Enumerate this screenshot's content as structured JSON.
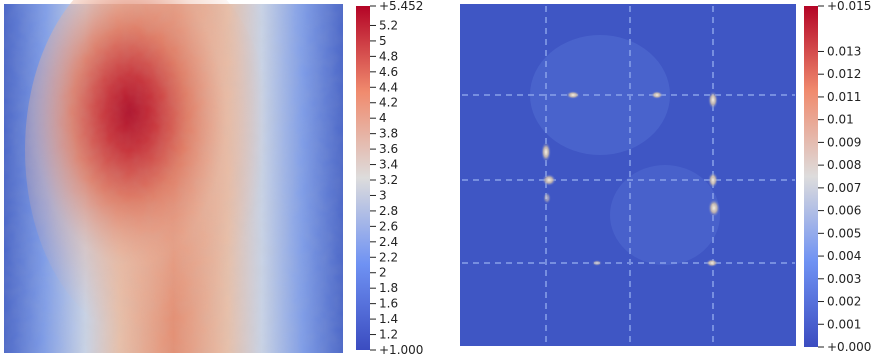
{
  "panels": [
    {
      "id": "left",
      "colorbar": {
        "colors": [
          "#3b4cc0",
          "#6f92f3",
          "#dddcdc",
          "#f08b6e",
          "#b40426"
        ],
        "min_label": "+1.000",
        "max_label": "+5.452",
        "min": 1.0,
        "max": 5.452,
        "ticks": [
          {
            "value": 5.2,
            "label": "5.2"
          },
          {
            "value": 5.0,
            "label": "5"
          },
          {
            "value": 4.8,
            "label": "4.8"
          },
          {
            "value": 4.6,
            "label": "4.6"
          },
          {
            "value": 4.4,
            "label": "4.4"
          },
          {
            "value": 4.2,
            "label": "4.2"
          },
          {
            "value": 4.0,
            "label": "4"
          },
          {
            "value": 3.8,
            "label": "3.8"
          },
          {
            "value": 3.6,
            "label": "3.6"
          },
          {
            "value": 3.4,
            "label": "3.4"
          },
          {
            "value": 3.2,
            "label": "3.2"
          },
          {
            "value": 3.0,
            "label": "3"
          },
          {
            "value": 2.8,
            "label": "2.8"
          },
          {
            "value": 2.6,
            "label": "2.6"
          },
          {
            "value": 2.4,
            "label": "2.4"
          },
          {
            "value": 2.2,
            "label": "2.2"
          },
          {
            "value": 2.0,
            "label": "2"
          },
          {
            "value": 1.8,
            "label": "1.8"
          },
          {
            "value": 1.6,
            "label": "1.6"
          },
          {
            "value": 1.4,
            "label": "1.4"
          },
          {
            "value": 1.2,
            "label": "1.2"
          }
        ]
      }
    },
    {
      "id": "right",
      "colorbar": {
        "colors": [
          "#3b4cc0",
          "#6f92f3",
          "#dddcdc",
          "#f08b6e",
          "#b40426"
        ],
        "min_label": "+0.000",
        "max_label": "+0.015",
        "min": 0.0,
        "max": 0.015,
        "ticks": [
          {
            "value": 0.013,
            "label": "0.013"
          },
          {
            "value": 0.012,
            "label": "0.012"
          },
          {
            "value": 0.011,
            "label": "0.011"
          },
          {
            "value": 0.01,
            "label": "0.01"
          },
          {
            "value": 0.009,
            "label": "0.009"
          },
          {
            "value": 0.008,
            "label": "0.008"
          },
          {
            "value": 0.007,
            "label": "0.007"
          },
          {
            "value": 0.006,
            "label": "0.006"
          },
          {
            "value": 0.005,
            "label": "0.005"
          },
          {
            "value": 0.004,
            "label": "0.004"
          },
          {
            "value": 0.003,
            "label": "0.003"
          },
          {
            "value": 0.002,
            "label": "0.002"
          },
          {
            "value": 0.001,
            "label": "0.001"
          }
        ]
      }
    }
  ]
}
